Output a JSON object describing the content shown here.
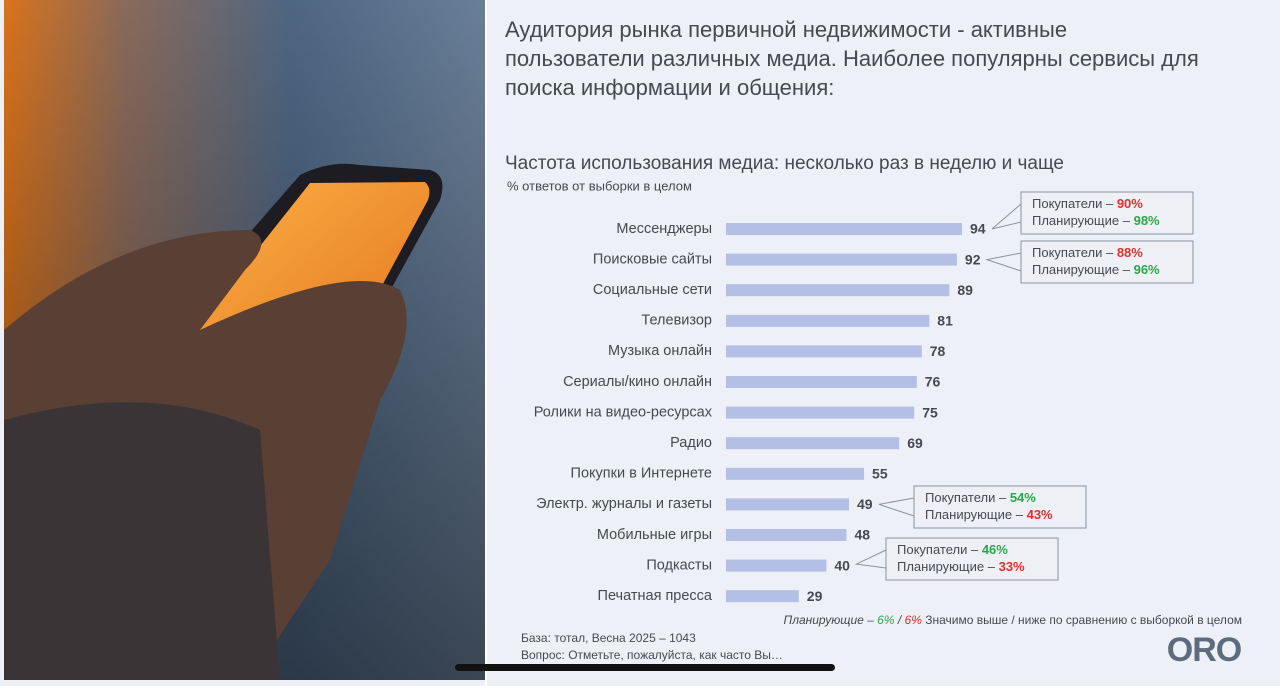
{
  "header": {
    "title_lines": [
      "Аудитория рынка первичной недвижимости - активные",
      "пользователи различных медиа. Наиболее популярны сервисы для",
      "поиска информации и общения:"
    ]
  },
  "chart_data": {
    "type": "bar",
    "orientation": "horizontal",
    "title": "Частота использования медиа: несколько раз в неделю и чаще",
    "subtitle": "% ответов от выборки в целом",
    "categories": [
      "Мессенджеры",
      "Поисковые сайты",
      "Социальные сети",
      "Телевизор",
      "Музыка онлайн",
      "Сериалы/кино онлайн",
      "Ролики на видео-ресурсах",
      "Радио",
      "Покупки в Интернете",
      "Электр. журналы и газеты",
      "Мобильные игры",
      "Подкасты",
      "Печатная пресса"
    ],
    "values": [
      94,
      92,
      89,
      81,
      78,
      76,
      75,
      69,
      55,
      49,
      48,
      40,
      29
    ],
    "color": "#b4bfe6",
    "annotations": [
      {
        "lines": [
          {
            "label": "Покупатели –",
            "value": "90%",
            "color": "#e0302a"
          },
          {
            "label": "Планирующие –",
            "value": "98%",
            "color": "#2aa84a"
          }
        ]
      },
      {
        "lines": [
          {
            "label": "Покупатели –",
            "value": "88%",
            "color": "#e0302a"
          },
          {
            "label": "Планирующие –",
            "value": "96%",
            "color": "#2aa84a"
          }
        ]
      },
      {
        "lines": [
          {
            "label": "Покупатели –",
            "value": "54%",
            "color": "#2aa84a"
          },
          {
            "label": "Планирующие –",
            "value": "43%",
            "color": "#e0302a"
          }
        ]
      },
      {
        "lines": [
          {
            "label": "Покупатели –",
            "value": "46%",
            "color": "#2aa84a"
          },
          {
            "label": "Планирующие –",
            "value": "33%",
            "color": "#e0302a"
          }
        ]
      }
    ],
    "legend_note": {
      "label": "Планирующие –",
      "higher": "6%",
      "higher_color": "#2aa84a",
      "separator": "/",
      "lower": "6%",
      "lower_color": "#e0302a",
      "text": "Значимо выше / ниже по сравнению с выборкой в целом"
    }
  },
  "footer": {
    "base": "База: тотал, Весна 2025 – 1043",
    "question": "Вопрос: Отметьте, пожалуйста, как часто Вы…",
    "logo": "ORO"
  }
}
